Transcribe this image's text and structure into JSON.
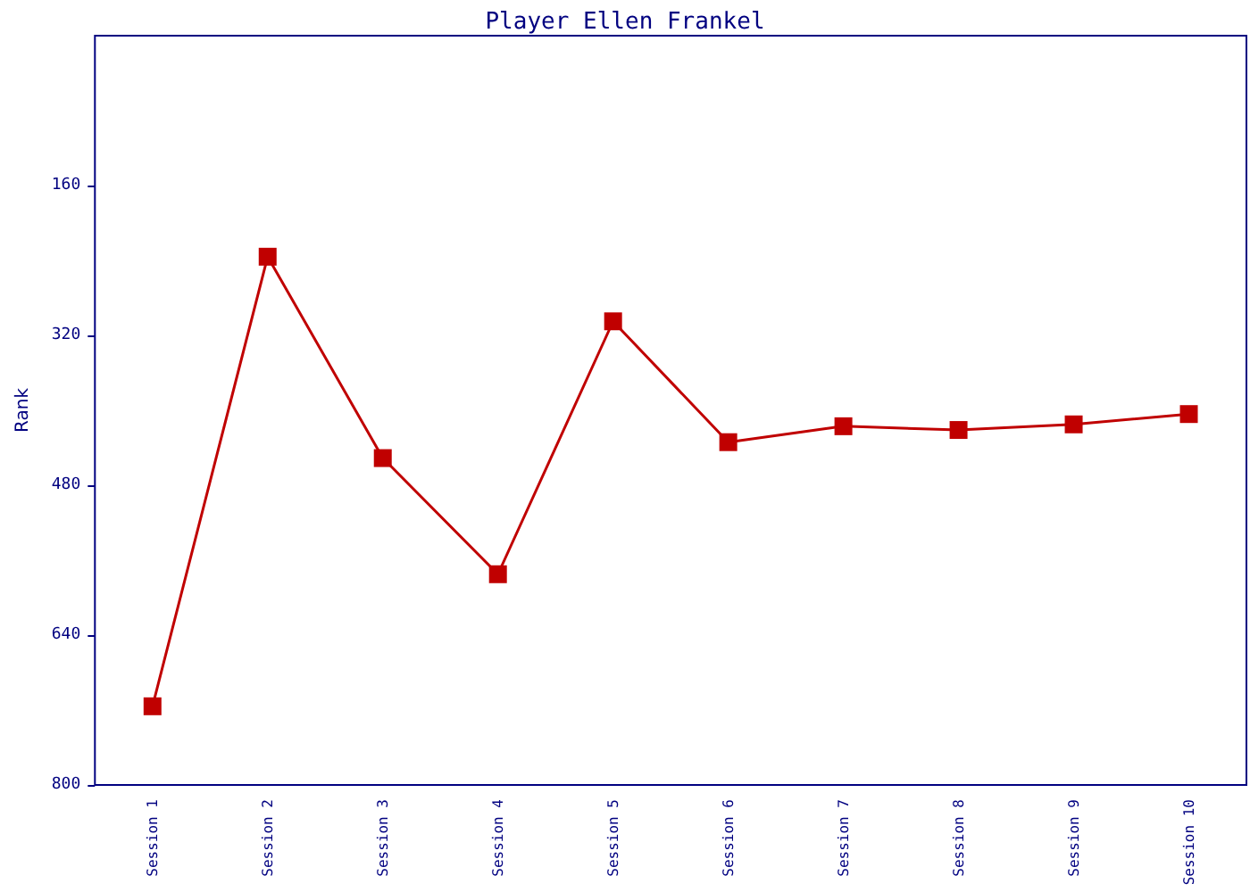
{
  "chart_data": {
    "type": "line",
    "title": "Player Ellen Frankel",
    "ylabel": "Rank",
    "categories": [
      "Session 1",
      "Session 2",
      "Session 3",
      "Session 4",
      "Session 5",
      "Session 6",
      "Session 7",
      "Session 8",
      "Session 9",
      "Session 10"
    ],
    "series": [
      {
        "color": "#c00000",
        "values": [
          716,
          236,
          451,
          575,
          305,
          434,
          417,
          421,
          415,
          404
        ]
      }
    ],
    "ylim": [
      800,
      0
    ],
    "yticks": [
      160,
      320,
      480,
      640,
      800
    ],
    "grid": false,
    "marker": "square",
    "line_style": "solid"
  }
}
